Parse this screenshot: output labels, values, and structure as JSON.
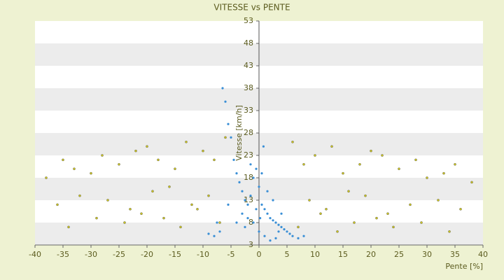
{
  "chart_data": {
    "type": "scatter",
    "title": "VITESSE vs PENTE",
    "x_label": "Pente [%]",
    "y_label": "Vitesse [km/h]",
    "xlim": [
      -40,
      40
    ],
    "xticks": [
      -40,
      -35,
      -30,
      -25,
      -20,
      -15,
      -10,
      -5,
      0,
      5,
      10,
      15,
      20,
      25,
      30,
      35,
      40
    ],
    "ylim": [
      3,
      53
    ],
    "yticks": [
      3,
      8,
      13,
      18,
      23,
      28,
      33,
      38,
      43,
      48,
      53
    ],
    "banded_background": true,
    "series": [
      {
        "color": "#3a8fd6",
        "x": [
          -6,
          -5.5,
          -5,
          -4.5,
          -4,
          -3.5,
          -3,
          -2.5,
          -2,
          -1.5,
          -1,
          -0.5,
          0,
          0.5,
          1,
          1.5,
          2,
          2.5,
          3,
          3.5,
          4,
          4.5,
          5,
          5.5,
          6,
          7,
          -7,
          -8,
          -9,
          -3,
          -2,
          -1,
          0,
          1,
          2,
          3,
          -1.5,
          0.5,
          1.5,
          2.5,
          -0.5,
          0.2,
          -4,
          4,
          -2.5,
          3.5,
          -5.5,
          -7.5,
          8,
          0.8,
          -6.5
        ],
        "y": [
          35,
          30,
          27,
          22,
          19,
          17,
          15,
          13,
          12,
          14,
          18,
          20,
          16,
          12,
          11,
          10,
          9,
          8.5,
          8,
          7.5,
          7,
          6.5,
          6,
          5.5,
          5,
          4.5,
          6,
          5,
          5.5,
          10,
          9,
          8,
          6,
          5,
          4,
          4.5,
          21,
          19,
          15,
          13,
          11,
          9,
          8,
          10,
          7,
          6,
          12,
          8,
          5,
          25,
          38
        ]
      },
      {
        "color": "#c9c224",
        "x": [
          -38,
          -35,
          -33,
          -30,
          -28,
          -25,
          -22,
          -20,
          -18,
          -15,
          -13,
          -10,
          -8,
          -6,
          -36,
          -32,
          -27,
          -23,
          -19,
          -16,
          -12,
          -9,
          -34,
          -29,
          -24,
          -21,
          -17,
          -14,
          -11,
          -7,
          38,
          35,
          33,
          30,
          28,
          25,
          22,
          20,
          18,
          15,
          13,
          10,
          8,
          6,
          36,
          32,
          27,
          23,
          19,
          16,
          12,
          9,
          34,
          29,
          24,
          21,
          17,
          14,
          11,
          7
        ],
        "y": [
          18,
          22,
          20,
          19,
          23,
          21,
          24,
          25,
          22,
          20,
          26,
          24,
          22,
          27,
          12,
          14,
          13,
          11,
          15,
          16,
          12,
          14,
          7,
          9,
          8,
          10,
          9,
          7,
          11,
          8,
          17,
          21,
          19,
          18,
          22,
          20,
          23,
          24,
          21,
          19,
          25,
          23,
          21,
          26,
          11,
          13,
          12,
          10,
          14,
          15,
          11,
          13,
          6,
          8,
          7,
          9,
          8,
          6,
          10,
          7
        ]
      }
    ]
  }
}
